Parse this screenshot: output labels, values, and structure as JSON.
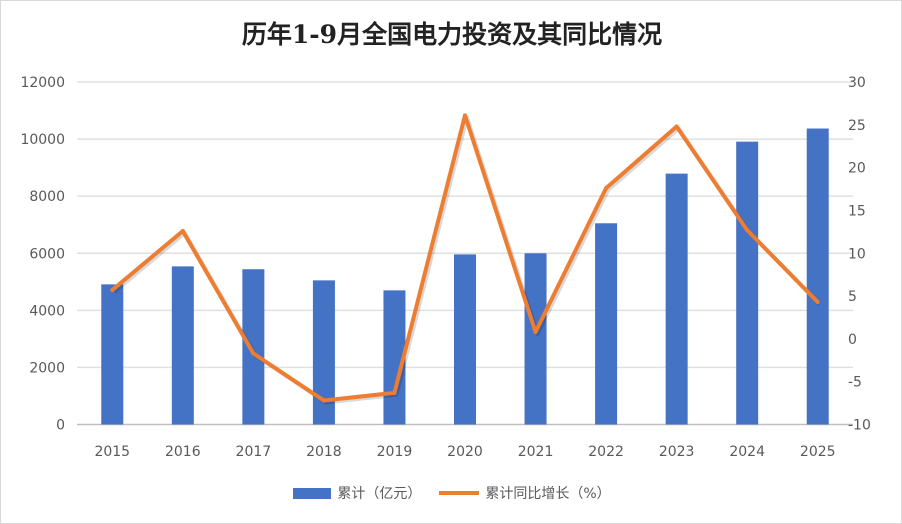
{
  "chart_data": {
    "type": "bar+line",
    "title": "历年1-9月全国电力投资及其同比情况",
    "categories": [
      "2015",
      "2016",
      "2017",
      "2018",
      "2019",
      "2020",
      "2021",
      "2022",
      "2023",
      "2024",
      "2025"
    ],
    "series": [
      {
        "name": "累计（亿元）",
        "type": "bar",
        "axis": "left",
        "color": "#4472c4",
        "values": [
          4910,
          5540,
          5440,
          5050,
          4700,
          5960,
          6000,
          7050,
          8790,
          9910,
          10370
        ]
      },
      {
        "name": "累计同比增长（%）",
        "type": "line",
        "axis": "right",
        "color": "#ed7d31",
        "values": [
          5.7,
          12.6,
          -1.7,
          -7.2,
          -6.3,
          26.1,
          0.8,
          17.6,
          24.8,
          12.7,
          4.3
        ]
      }
    ],
    "y_left": {
      "range": [
        0,
        12000
      ],
      "ticks": [
        "0",
        "2000",
        "4000",
        "6000",
        "8000",
        "10000",
        "12000"
      ]
    },
    "y_right": {
      "range": [
        -10,
        30
      ],
      "ticks": [
        "-10",
        "-5",
        "0",
        "5",
        "10",
        "15",
        "20",
        "25",
        "30"
      ]
    },
    "grid": true,
    "legend": "bottom"
  }
}
